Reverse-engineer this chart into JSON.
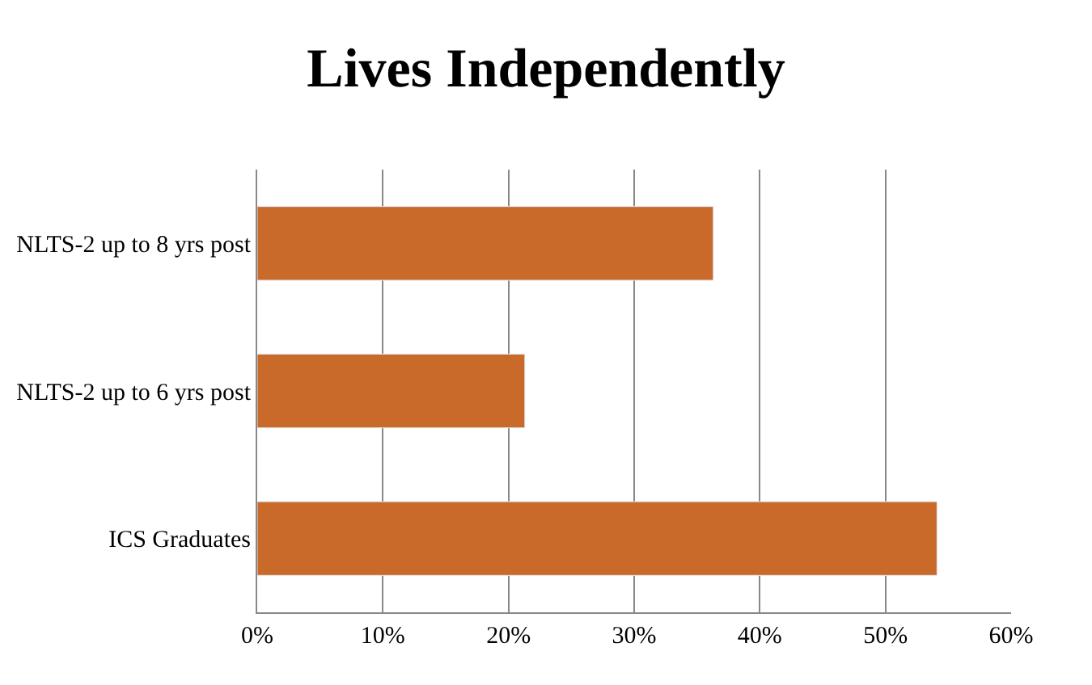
{
  "chart_data": {
    "type": "bar",
    "title": "Lives Independently",
    "orientation": "horizontal",
    "categories": [
      "NLTS-2 up to 8 yrs post",
      "NLTS-2 up to 6 yrs post",
      "ICS Graduates"
    ],
    "values": [
      36.3,
      21.3,
      54.1
    ],
    "color": "#c96a2b",
    "xlim": [
      0,
      60
    ],
    "xticks": [
      {
        "value": 0,
        "label": "0%"
      },
      {
        "value": 10,
        "label": "10%"
      },
      {
        "value": 20,
        "label": "20%"
      },
      {
        "value": 30,
        "label": "30%"
      },
      {
        "value": 40,
        "label": "40%"
      },
      {
        "value": 50,
        "label": "50%"
      },
      {
        "value": 60,
        "label": "60%"
      }
    ],
    "grid": "x"
  }
}
